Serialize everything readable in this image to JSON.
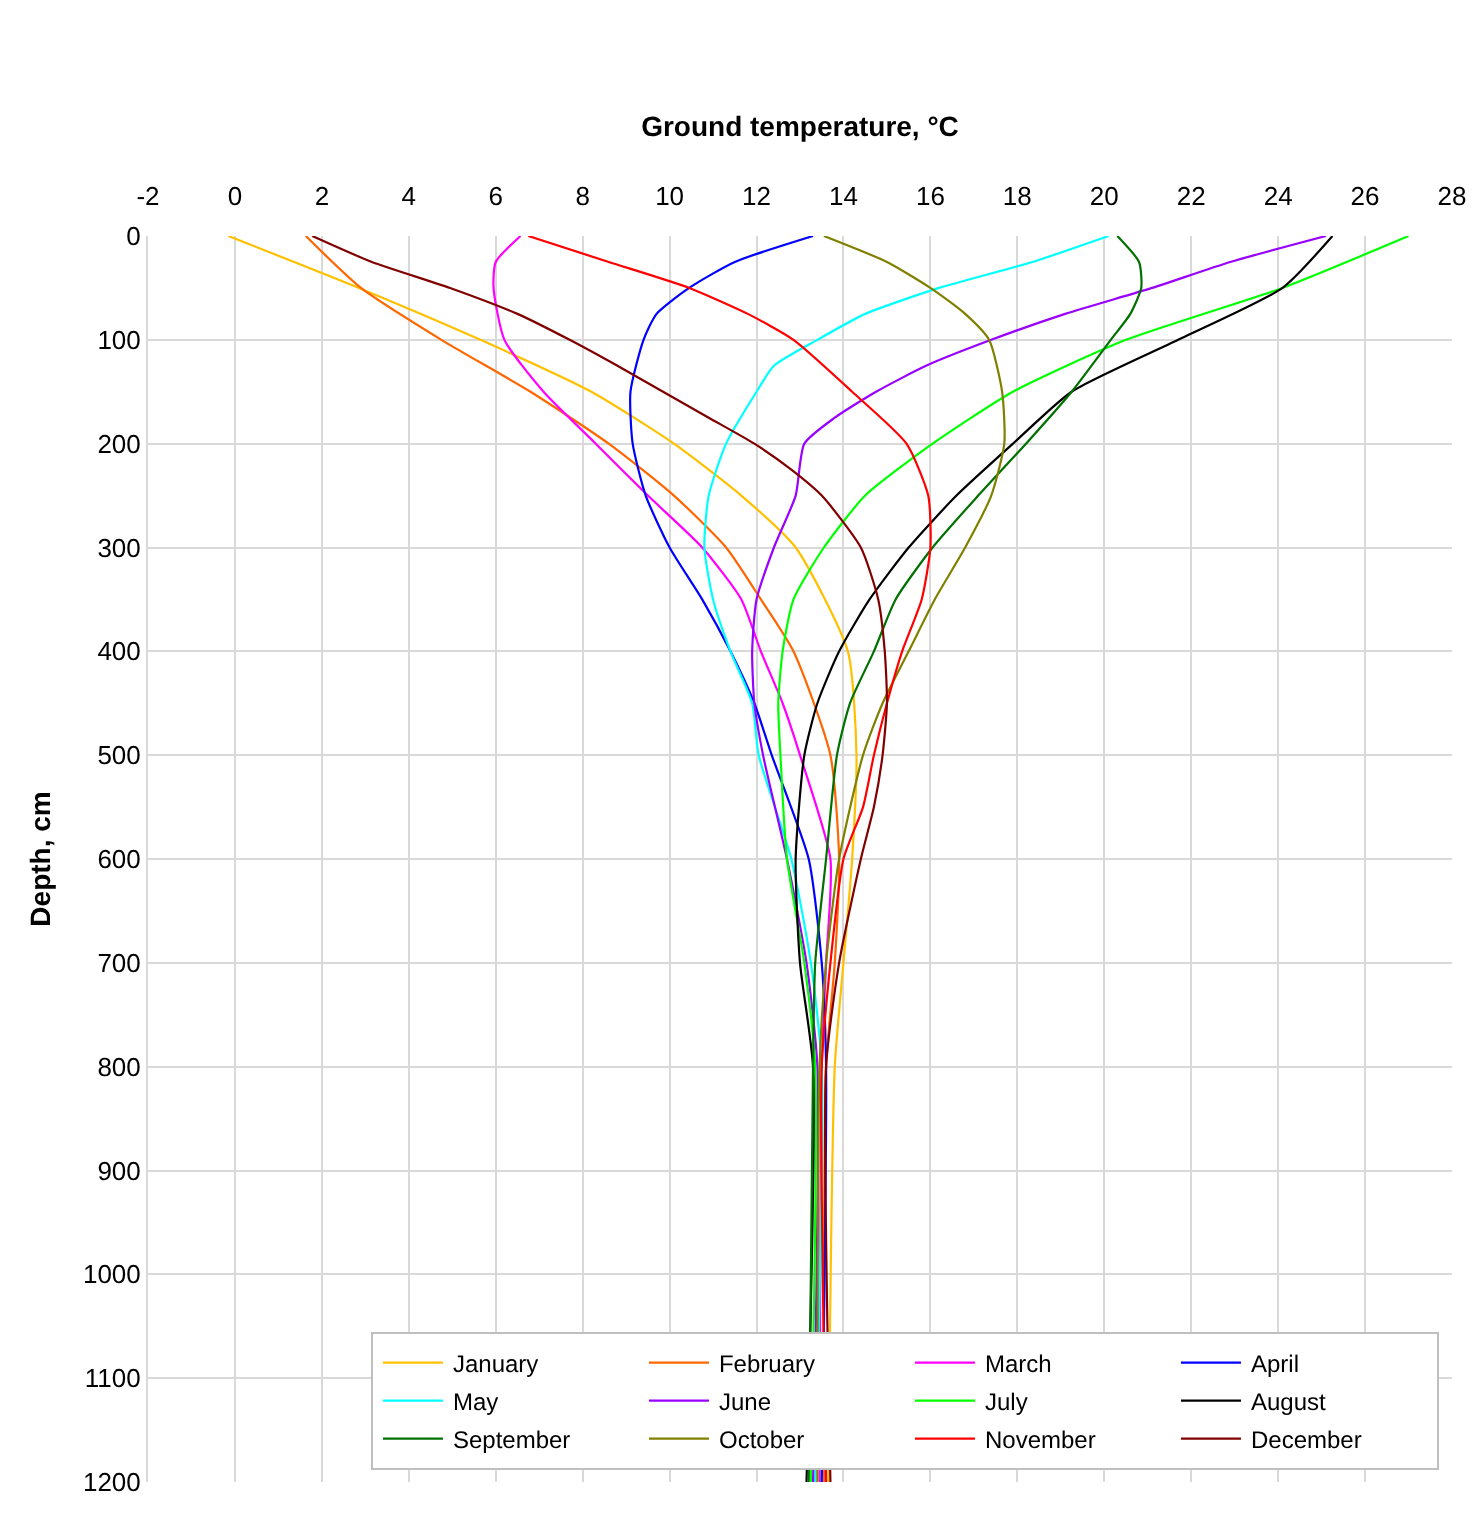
{
  "chart_data": {
    "type": "line",
    "xlabel": "Ground temperature, °C",
    "ylabel": "Depth, cm",
    "xlim": [
      -2,
      28
    ],
    "xticks": [
      -2,
      0,
      2,
      4,
      6,
      8,
      10,
      12,
      14,
      16,
      18,
      20,
      22,
      24,
      26,
      28
    ],
    "ylim": [
      1200,
      0
    ],
    "yticks": [
      0,
      100,
      200,
      300,
      400,
      500,
      600,
      700,
      800,
      900,
      1000,
      1100,
      1200
    ],
    "grid": true,
    "legend": "bottom right",
    "marker": "none",
    "line_style": "solid",
    "series": [
      {
        "name": "January",
        "color": "#ffc000",
        "x": [
          -0.15,
          2.85,
          5.65,
          8.2,
          10.1,
          11.65,
          12.9,
          14.1,
          14.3,
          14.2,
          14.0,
          13.8,
          13.65
        ],
        "values": [
          0,
          50,
          100,
          150,
          200,
          250,
          300,
          400,
          500,
          600,
          700,
          800,
          1200
        ]
      },
      {
        "name": "February",
        "color": "#ff6600",
        "x": [
          1.63,
          2.9,
          4.75,
          6.8,
          8.6,
          10.1,
          11.3,
          12.1,
          12.85,
          13.7,
          13.9,
          13.8,
          13.6,
          13.55
        ],
        "values": [
          0,
          50,
          100,
          150,
          200,
          250,
          300,
          350,
          400,
          500,
          600,
          700,
          800,
          1200
        ]
      },
      {
        "name": "March",
        "color": "#ff00ff",
        "x": [
          6.57,
          6.0,
          5.95,
          6.2,
          7.1,
          8.3,
          9.5,
          10.75,
          11.65,
          12.1,
          12.6,
          13.0,
          13.7,
          13.6,
          13.5,
          13.45
        ],
        "values": [
          0,
          25,
          50,
          100,
          150,
          200,
          250,
          300,
          350,
          400,
          450,
          500,
          600,
          700,
          800,
          1200
        ]
      },
      {
        "name": "April",
        "color": "#0000ff",
        "x": [
          13.3,
          11.5,
          10.45,
          9.7,
          9.4,
          9.1,
          9.15,
          9.45,
          10.0,
          10.75,
          11.4,
          11.95,
          12.35,
          13.2,
          13.5,
          13.6,
          13.5
        ],
        "values": [
          0,
          25,
          50,
          75,
          100,
          150,
          200,
          250,
          300,
          350,
          400,
          450,
          500,
          600,
          700,
          800,
          1200
        ]
      },
      {
        "name": "May",
        "color": "#00ffff",
        "x": [
          20.1,
          18.35,
          16.2,
          14.5,
          13.4,
          12.4,
          12.0,
          11.3,
          10.9,
          10.8,
          11.0,
          11.4,
          11.9,
          12.05,
          12.8,
          13.25,
          13.5,
          13.35
        ],
        "values": [
          0,
          25,
          50,
          75,
          100,
          125,
          150,
          200,
          250,
          300,
          350,
          400,
          450,
          500,
          600,
          700,
          800,
          1200
        ]
      },
      {
        "name": "June",
        "color": "#9900ff",
        "x": [
          25.1,
          22.9,
          21.1,
          19.1,
          17.4,
          15.9,
          14.75,
          13.8,
          13.1,
          12.9,
          12.4,
          12.0,
          11.9,
          11.95,
          12.15,
          12.7,
          13.15,
          13.4,
          13.3
        ],
        "values": [
          0,
          25,
          50,
          75,
          100,
          125,
          150,
          175,
          200,
          250,
          300,
          350,
          400,
          450,
          500,
          600,
          700,
          800,
          1200
        ]
      },
      {
        "name": "July",
        "color": "#00ff00",
        "x": [
          27.0,
          24.1,
          20.5,
          17.9,
          16.05,
          14.5,
          13.55,
          12.85,
          12.6,
          12.5,
          12.55,
          12.7,
          13.1,
          13.35,
          13.25
        ],
        "values": [
          0,
          50,
          100,
          150,
          200,
          250,
          300,
          350,
          400,
          450,
          500,
          600,
          700,
          800,
          1200
        ]
      },
      {
        "name": "August",
        "color": "#000000",
        "x": [
          25.25,
          24.1,
          21.7,
          19.25,
          17.9,
          16.6,
          15.5,
          14.6,
          13.9,
          13.4,
          13.1,
          12.9,
          13.0,
          13.3,
          13.15
        ],
        "values": [
          0,
          50,
          100,
          150,
          200,
          250,
          300,
          350,
          400,
          450,
          500,
          600,
          700,
          800,
          1200
        ]
      },
      {
        "name": "September",
        "color": "#007000",
        "x": [
          20.3,
          20.8,
          20.85,
          20.6,
          20.15,
          19.25,
          18.2,
          17.1,
          16.05,
          15.2,
          14.7,
          14.15,
          13.85,
          13.6,
          13.35,
          13.3,
          13.2
        ],
        "values": [
          0,
          25,
          50,
          75,
          100,
          150,
          200,
          250,
          300,
          350,
          400,
          450,
          500,
          600,
          700,
          800,
          1200
        ]
      },
      {
        "name": "October",
        "color": "#808000",
        "x": [
          13.55,
          15.0,
          16.0,
          16.8,
          17.35,
          17.65,
          17.7,
          17.4,
          16.8,
          16.1,
          15.5,
          14.9,
          14.45,
          13.9,
          13.6,
          13.45,
          13.4
        ],
        "values": [
          0,
          25,
          50,
          75,
          100,
          150,
          200,
          250,
          300,
          350,
          400,
          450,
          500,
          600,
          700,
          800,
          1200
        ]
      },
      {
        "name": "November",
        "color": "#ff0000",
        "x": [
          6.75,
          8.6,
          10.45,
          11.8,
          12.85,
          14.2,
          15.45,
          15.95,
          16.0,
          15.8,
          15.35,
          15.0,
          14.7,
          14.45,
          14.0,
          13.7,
          13.5,
          13.6
        ],
        "values": [
          0,
          25,
          50,
          75,
          100,
          150,
          200,
          250,
          300,
          350,
          400,
          450,
          500,
          550,
          600,
          700,
          800,
          1200
        ]
      },
      {
        "name": "December",
        "color": "#800000",
        "x": [
          1.78,
          3.15,
          4.95,
          6.5,
          7.7,
          8.8,
          9.85,
          10.9,
          11.95,
          12.8,
          13.5,
          14.4,
          14.8,
          14.95,
          15.0,
          14.9,
          14.7,
          14.4,
          13.9,
          13.6,
          13.7
        ],
        "values": [
          0,
          25,
          50,
          75,
          100,
          125,
          150,
          175,
          200,
          225,
          250,
          300,
          350,
          400,
          450,
          500,
          550,
          600,
          700,
          800,
          1200
        ]
      }
    ]
  }
}
